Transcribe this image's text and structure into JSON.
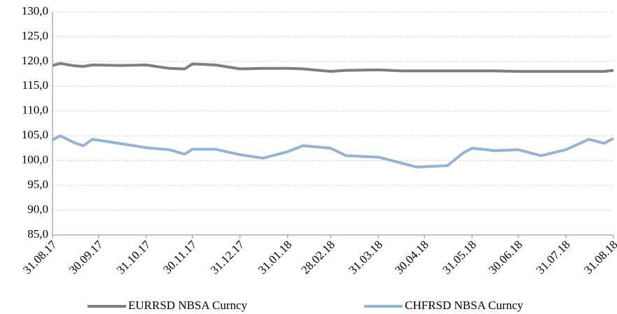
{
  "chart_data": {
    "type": "line",
    "x": [
      "31.08.17",
      "05.09.17",
      "15.09.17",
      "20.09.17",
      "26.09.17",
      "15.10.17",
      "31.10.17",
      "15.11.17",
      "25.11.17",
      "30.11.17",
      "15.12.17",
      "31.12.17",
      "15.01.18",
      "31.01.18",
      "10.02.18",
      "28.02.18",
      "10.03.18",
      "31.03.18",
      "15.04.18",
      "25.04.18",
      "15.05.18",
      "25.05.18",
      "31.05.18",
      "15.06.18",
      "30.06.18",
      "15.07.18",
      "31.07.18",
      "15.08.18",
      "25.08.18",
      "31.08.18"
    ],
    "series": [
      {
        "name": "EURRSD NBSA Curncy",
        "color": "#7f7f7f",
        "values": [
          119.2,
          119.6,
          119.1,
          119.0,
          119.3,
          119.2,
          119.3,
          118.6,
          118.5,
          119.5,
          119.3,
          118.5,
          118.6,
          118.6,
          118.5,
          118.0,
          118.2,
          118.3,
          118.1,
          118.1,
          118.1,
          118.1,
          118.1,
          118.1,
          118.0,
          118.0,
          118.0,
          118.0,
          118.0,
          118.2
        ]
      },
      {
        "name": "CHFRSD NBSA Curncy",
        "color": "#95b3d7",
        "values": [
          104.2,
          105.0,
          103.5,
          103.0,
          104.3,
          103.4,
          102.6,
          102.2,
          101.3,
          102.3,
          102.3,
          101.2,
          100.5,
          101.8,
          103.0,
          102.5,
          101.0,
          100.7,
          99.5,
          98.7,
          99.0,
          101.5,
          102.5,
          102.0,
          102.2,
          101.0,
          102.2,
          104.3,
          103.5,
          104.5
        ]
      }
    ],
    "xlim": [
      "31.08.17",
      "31.08.18"
    ],
    "xticks": [
      "31.08.17",
      "30.09.17",
      "31.10.17",
      "30.11.17",
      "31.12.17",
      "31.01.18",
      "28.02.18",
      "31.03.18",
      "30.04.18",
      "31.05.18",
      "30.06.18",
      "31.07.18",
      "31.08.18"
    ],
    "ylim": [
      85,
      130
    ],
    "yticks": [
      {
        "value": 85,
        "label": "85,0"
      },
      {
        "value": 90,
        "label": "90,0"
      },
      {
        "value": 95,
        "label": "95,0"
      },
      {
        "value": 100,
        "label": "100,0"
      },
      {
        "value": 105,
        "label": "105,0"
      },
      {
        "value": 110,
        "label": "110,0"
      },
      {
        "value": 115,
        "label": "115,0"
      },
      {
        "value": 120,
        "label": "120,0"
      },
      {
        "value": 125,
        "label": "125,0"
      },
      {
        "value": 130,
        "label": "130,0"
      }
    ],
    "grid": true,
    "legend": "bottom"
  }
}
